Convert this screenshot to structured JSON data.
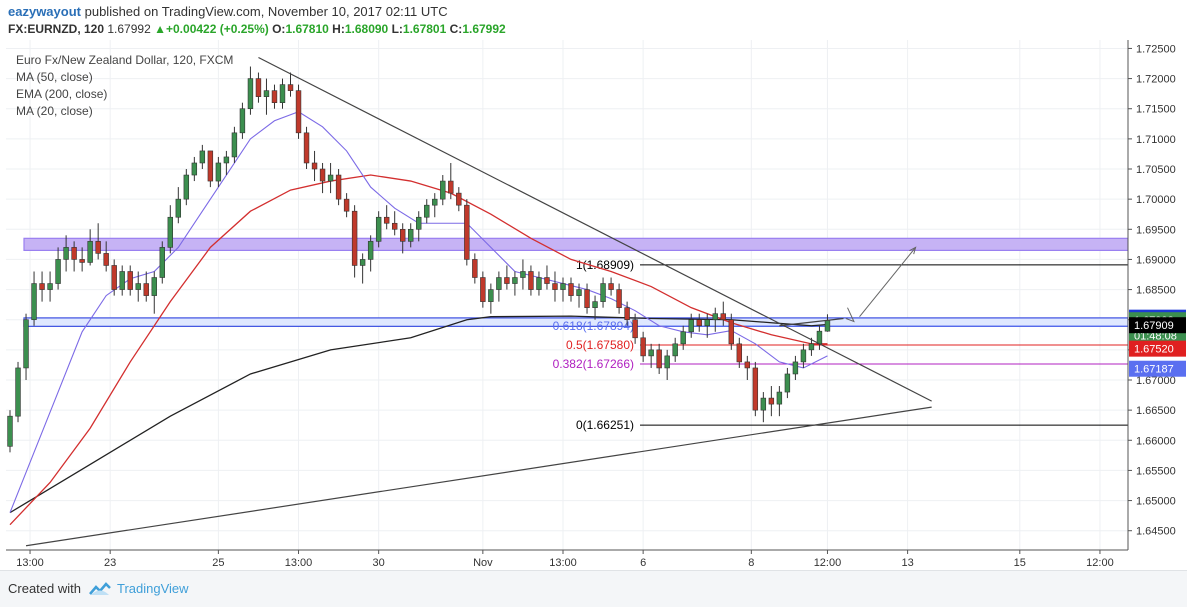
{
  "header": {
    "user": "eazywayout",
    "published_text": "published on TradingView.com, November 10, 2017 02:11 UTC",
    "symbol": "FX:EURNZD, 120",
    "last": "1.67992",
    "change": "+0.00422 (+0.25%)",
    "o_label": "O:",
    "o": "1.67810",
    "h_label": "H:",
    "h": "1.68090",
    "l_label": "L:",
    "l": "1.67801",
    "c_label": "C:",
    "c": "1.67992"
  },
  "legend": {
    "title": "Euro Fx/New Zealand Dollar, 120, FXCM",
    "items": [
      "MA (50, close)",
      "EMA (200, close)",
      "MA (20, close)"
    ]
  },
  "footer": {
    "created_with": "Created with",
    "brand": "TradingView"
  },
  "colors": {
    "up": "#3c8f4f",
    "down": "#c0392b",
    "ma50": "#d32f2f",
    "ema200": "#222222",
    "ma20": "#7c6ae6",
    "zone_purple": "#c6b3f5",
    "zone_blue": "#cfdcff",
    "fib_blue": "#5a6ff0",
    "fib_red": "#e02020",
    "fib_purple": "#b020c0"
  },
  "chart_data": {
    "type": "candlestick",
    "ylim": [
      1.6418,
      1.7264
    ],
    "y_ticks": [
      "1.72500",
      "1.72000",
      "1.71500",
      "1.71000",
      "1.70500",
      "1.70000",
      "1.69500",
      "1.69000",
      "1.68500",
      "1.68000",
      "1.67500",
      "1.67000",
      "1.66500",
      "1.66000",
      "1.65500",
      "1.65000",
      "1.64500"
    ],
    "x_ticks": [
      "13:00",
      "23",
      "25",
      "13:00",
      "30",
      "Nov",
      "13:00",
      "6",
      "8",
      "12:00",
      "13",
      "15",
      "12:00"
    ],
    "x_tick_pos": [
      2.5,
      12.5,
      26,
      36,
      46,
      59,
      69,
      79,
      92.5,
      102,
      112,
      126,
      136
    ],
    "n_slots": 140,
    "candles": [
      [
        0,
        1.659,
        1.665,
        1.658,
        1.664
      ],
      [
        1,
        1.664,
        1.673,
        1.663,
        1.672
      ],
      [
        2,
        1.672,
        1.681,
        1.67,
        1.68
      ],
      [
        3,
        1.68,
        1.688,
        1.679,
        1.686
      ],
      [
        4,
        1.686,
        1.688,
        1.683,
        1.685
      ],
      [
        5,
        1.685,
        1.688,
        1.683,
        1.686
      ],
      [
        6,
        1.686,
        1.692,
        1.685,
        1.69
      ],
      [
        7,
        1.69,
        1.694,
        1.688,
        1.692
      ],
      [
        8,
        1.692,
        1.693,
        1.688,
        1.69
      ],
      [
        9,
        1.69,
        1.692,
        1.688,
        1.6895
      ],
      [
        10,
        1.6895,
        1.695,
        1.689,
        1.693
      ],
      [
        11,
        1.693,
        1.696,
        1.69,
        1.691
      ],
      [
        12,
        1.691,
        1.693,
        1.688,
        1.689
      ],
      [
        13,
        1.689,
        1.69,
        1.684,
        1.685
      ],
      [
        14,
        1.685,
        1.689,
        1.684,
        1.688
      ],
      [
        15,
        1.688,
        1.689,
        1.684,
        1.685
      ],
      [
        16,
        1.685,
        1.688,
        1.683,
        1.686
      ],
      [
        17,
        1.686,
        1.688,
        1.683,
        1.684
      ],
      [
        18,
        1.684,
        1.688,
        1.681,
        1.687
      ],
      [
        19,
        1.687,
        1.693,
        1.686,
        1.692
      ],
      [
        20,
        1.692,
        1.699,
        1.691,
        1.697
      ],
      [
        21,
        1.697,
        1.702,
        1.696,
        1.7
      ],
      [
        22,
        1.7,
        1.705,
        1.699,
        1.704
      ],
      [
        23,
        1.704,
        1.707,
        1.703,
        1.706
      ],
      [
        24,
        1.706,
        1.709,
        1.705,
        1.708
      ],
      [
        25,
        1.708,
        1.708,
        1.702,
        1.703
      ],
      [
        26,
        1.703,
        1.707,
        1.702,
        1.706
      ],
      [
        27,
        1.706,
        1.708,
        1.704,
        1.707
      ],
      [
        28,
        1.707,
        1.712,
        1.706,
        1.711
      ],
      [
        29,
        1.711,
        1.716,
        1.71,
        1.715
      ],
      [
        30,
        1.715,
        1.722,
        1.714,
        1.72
      ],
      [
        31,
        1.72,
        1.721,
        1.716,
        1.717
      ],
      [
        32,
        1.717,
        1.72,
        1.714,
        1.718
      ],
      [
        33,
        1.718,
        1.719,
        1.715,
        1.716
      ],
      [
        34,
        1.716,
        1.72,
        1.715,
        1.719
      ],
      [
        35,
        1.719,
        1.721,
        1.717,
        1.718
      ],
      [
        36,
        1.718,
        1.719,
        1.71,
        1.711
      ],
      [
        37,
        1.711,
        1.712,
        1.705,
        1.706
      ],
      [
        38,
        1.706,
        1.708,
        1.703,
        1.705
      ],
      [
        39,
        1.705,
        1.706,
        1.701,
        1.703
      ],
      [
        40,
        1.703,
        1.706,
        1.701,
        1.704
      ],
      [
        41,
        1.704,
        1.705,
        1.699,
        1.7
      ],
      [
        42,
        1.7,
        1.701,
        1.697,
        1.698
      ],
      [
        43,
        1.698,
        1.699,
        1.687,
        1.689
      ],
      [
        44,
        1.689,
        1.691,
        1.686,
        1.69
      ],
      [
        45,
        1.69,
        1.694,
        1.688,
        1.693
      ],
      [
        46,
        1.693,
        1.698,
        1.692,
        1.697
      ],
      [
        47,
        1.697,
        1.699,
        1.695,
        1.696
      ],
      [
        48,
        1.696,
        1.698,
        1.694,
        1.695
      ],
      [
        49,
        1.695,
        1.696,
        1.691,
        1.693
      ],
      [
        50,
        1.693,
        1.696,
        1.692,
        1.695
      ],
      [
        51,
        1.695,
        1.698,
        1.693,
        1.697
      ],
      [
        52,
        1.697,
        1.7,
        1.696,
        1.699
      ],
      [
        53,
        1.699,
        1.701,
        1.697,
        1.7
      ],
      [
        54,
        1.7,
        1.704,
        1.699,
        1.703
      ],
      [
        55,
        1.703,
        1.706,
        1.7,
        1.701
      ],
      [
        56,
        1.701,
        1.702,
        1.698,
        1.699
      ],
      [
        57,
        1.699,
        1.7,
        1.689,
        1.69
      ],
      [
        58,
        1.69,
        1.691,
        1.686,
        1.687
      ],
      [
        59,
        1.687,
        1.688,
        1.682,
        1.683
      ],
      [
        60,
        1.683,
        1.686,
        1.681,
        1.685
      ],
      [
        61,
        1.685,
        1.688,
        1.683,
        1.687
      ],
      [
        62,
        1.687,
        1.689,
        1.685,
        1.686
      ],
      [
        63,
        1.686,
        1.688,
        1.684,
        1.687
      ],
      [
        64,
        1.687,
        1.69,
        1.685,
        1.688
      ],
      [
        65,
        1.688,
        1.689,
        1.684,
        1.685
      ],
      [
        66,
        1.685,
        1.688,
        1.684,
        1.687
      ],
      [
        67,
        1.687,
        1.689,
        1.685,
        1.686
      ],
      [
        68,
        1.686,
        1.688,
        1.683,
        1.685
      ],
      [
        69,
        1.685,
        1.687,
        1.683,
        1.686
      ],
      [
        70,
        1.686,
        1.687,
        1.683,
        1.684
      ],
      [
        71,
        1.684,
        1.686,
        1.682,
        1.685
      ],
      [
        72,
        1.685,
        1.686,
        1.681,
        1.682
      ],
      [
        73,
        1.682,
        1.684,
        1.68,
        1.683
      ],
      [
        74,
        1.683,
        1.687,
        1.682,
        1.686
      ],
      [
        75,
        1.686,
        1.687,
        1.684,
        1.685
      ],
      [
        76,
        1.685,
        1.686,
        1.681,
        1.682
      ],
      [
        77,
        1.682,
        1.683,
        1.679,
        1.68
      ],
      [
        78,
        1.68,
        1.681,
        1.676,
        1.677
      ],
      [
        79,
        1.677,
        1.678,
        1.673,
        1.674
      ],
      [
        80,
        1.674,
        1.676,
        1.672,
        1.675
      ],
      [
        81,
        1.675,
        1.676,
        1.671,
        1.672
      ],
      [
        82,
        1.672,
        1.675,
        1.67,
        1.674
      ],
      [
        83,
        1.674,
        1.677,
        1.673,
        1.676
      ],
      [
        84,
        1.676,
        1.679,
        1.675,
        1.678
      ],
      [
        85,
        1.678,
        1.681,
        1.677,
        1.68
      ],
      [
        86,
        1.68,
        1.681,
        1.678,
        1.679
      ],
      [
        87,
        1.679,
        1.681,
        1.677,
        1.68
      ],
      [
        88,
        1.68,
        1.682,
        1.678,
        1.681
      ],
      [
        89,
        1.681,
        1.683,
        1.679,
        1.68
      ],
      [
        90,
        1.68,
        1.681,
        1.675,
        1.676
      ],
      [
        91,
        1.676,
        1.677,
        1.672,
        1.673
      ],
      [
        92,
        1.673,
        1.674,
        1.67,
        1.672
      ],
      [
        93,
        1.672,
        1.673,
        1.664,
        1.665
      ],
      [
        94,
        1.665,
        1.668,
        1.663,
        1.667
      ],
      [
        95,
        1.667,
        1.669,
        1.664,
        1.666
      ],
      [
        96,
        1.666,
        1.669,
        1.664,
        1.668
      ],
      [
        97,
        1.668,
        1.672,
        1.667,
        1.671
      ],
      [
        98,
        1.671,
        1.674,
        1.67,
        1.673
      ],
      [
        99,
        1.673,
        1.676,
        1.672,
        1.675
      ],
      [
        100,
        1.675,
        1.677,
        1.674,
        1.676
      ],
      [
        101,
        1.676,
        1.679,
        1.675,
        1.6781
      ],
      [
        102,
        1.6781,
        1.6809,
        1.678,
        1.6799
      ]
    ],
    "ma20": [
      [
        0,
        1.648
      ],
      [
        3,
        1.658
      ],
      [
        6,
        1.668
      ],
      [
        9,
        1.678
      ],
      [
        12,
        1.684
      ],
      [
        15,
        1.6868
      ],
      [
        18,
        1.688
      ],
      [
        21,
        1.692
      ],
      [
        24,
        1.698
      ],
      [
        27,
        1.704
      ],
      [
        30,
        1.71
      ],
      [
        33,
        1.713
      ],
      [
        36,
        1.7145
      ],
      [
        39,
        1.712
      ],
      [
        42,
        1.708
      ],
      [
        45,
        1.702
      ],
      [
        48,
        1.6985
      ],
      [
        51,
        1.696
      ],
      [
        54,
        1.696
      ],
      [
        57,
        1.696
      ],
      [
        60,
        1.692
      ],
      [
        63,
        1.688
      ],
      [
        66,
        1.687
      ],
      [
        69,
        1.686
      ],
      [
        72,
        1.685
      ],
      [
        75,
        1.6835
      ],
      [
        78,
        1.6815
      ],
      [
        81,
        1.679
      ],
      [
        84,
        1.678
      ],
      [
        87,
        1.6775
      ],
      [
        90,
        1.6782
      ],
      [
        93,
        1.676
      ],
      [
        96,
        1.673
      ],
      [
        99,
        1.672
      ],
      [
        102,
        1.674
      ]
    ],
    "ma50": [
      [
        0,
        1.646
      ],
      [
        5,
        1.653
      ],
      [
        10,
        1.662
      ],
      [
        15,
        1.673
      ],
      [
        20,
        1.683
      ],
      [
        25,
        1.692
      ],
      [
        30,
        1.698
      ],
      [
        35,
        1.7015
      ],
      [
        40,
        1.703
      ],
      [
        45,
        1.704
      ],
      [
        50,
        1.703
      ],
      [
        55,
        1.701
      ],
      [
        60,
        1.6975
      ],
      [
        65,
        1.6935
      ],
      [
        70,
        1.69
      ],
      [
        75,
        1.688
      ],
      [
        80,
        1.6855
      ],
      [
        85,
        1.682
      ],
      [
        90,
        1.6795
      ],
      [
        95,
        1.6775
      ],
      [
        100,
        1.676
      ],
      [
        102,
        1.676
      ]
    ],
    "ema200": [
      [
        0,
        1.648
      ],
      [
        10,
        1.656
      ],
      [
        20,
        1.664
      ],
      [
        30,
        1.671
      ],
      [
        40,
        1.675
      ],
      [
        50,
        1.677
      ],
      [
        57,
        1.68
      ],
      [
        60,
        1.6805
      ],
      [
        70,
        1.6806
      ],
      [
        80,
        1.6802
      ],
      [
        90,
        1.68
      ],
      [
        95,
        1.6795
      ],
      [
        100,
        1.679
      ],
      [
        102,
        1.6792
      ]
    ],
    "trendlines": [
      [
        [
          31,
          1.7235
        ],
        [
          115,
          1.6665
        ]
      ],
      [
        [
          2,
          1.6425
        ],
        [
          115,
          1.6655
        ]
      ],
      [
        [
          96,
          1.679
        ],
        [
          104,
          1.6802
        ]
      ]
    ],
    "arrow": [
      [
        106,
        1.6805
      ],
      [
        113,
        1.692
      ]
    ],
    "zones": [
      {
        "name": "resistance-zone",
        "y1": 1.6935,
        "y2": 1.6915,
        "color": "#c6b3f5",
        "border": "#9a7ff0"
      },
      {
        "name": "support-zone",
        "y1": 1.6803,
        "y2": 1.6789,
        "color": "#dfe8ff",
        "border": "#3b4fe0"
      }
    ],
    "fib_levels": [
      {
        "label": "1(1.68909)",
        "value": 1.68909,
        "color": "#000000"
      },
      {
        "label": "0.618(1.67894)",
        "value": 1.67894,
        "color": "#5a6ff0"
      },
      {
        "label": "0.5(1.67580)",
        "value": 1.6758,
        "color": "#e02020"
      },
      {
        "label": "0.382(1.67266)",
        "value": 1.67266,
        "color": "#b020c0"
      },
      {
        "label": "0(1.66251)",
        "value": 1.66251,
        "color": "#000000"
      }
    ],
    "price_tags": [
      {
        "text": "1.68034",
        "value": 1.68034,
        "bg": "#1e3bd6",
        "fg": "#ffffff"
      },
      {
        "text": "1.67992",
        "value": 1.67992,
        "bg": "#3c8f4f",
        "fg": "#ffffff"
      },
      {
        "text": "01:48:08",
        "value": 1.67742,
        "bg": "#3c8f4f",
        "fg": "#ffffff"
      },
      {
        "text": "1.67909",
        "value": 1.67909,
        "bg": "#000000",
        "fg": "#ffffff"
      },
      {
        "text": "1.67520",
        "value": 1.6752,
        "bg": "#e02020",
        "fg": "#ffffff"
      },
      {
        "text": "1.67187",
        "value": 1.67187,
        "bg": "#5a6ff0",
        "fg": "#ffffff"
      }
    ]
  }
}
